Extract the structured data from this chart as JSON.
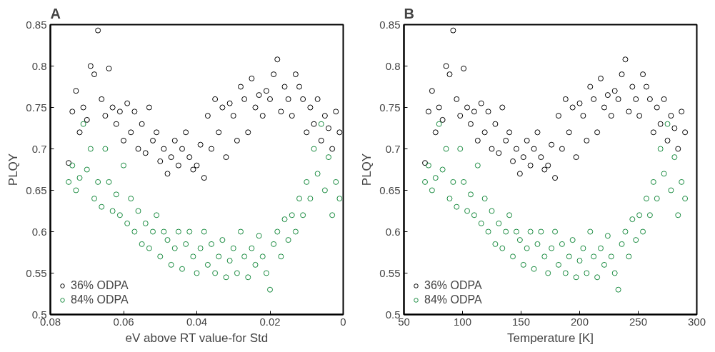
{
  "chart_data": [
    {
      "type": "scatter",
      "title": "A",
      "xlabel": "eV above RT value-for Std",
      "ylabel": "PLQY",
      "xlim": [
        0.08,
        0
      ],
      "xticks": [
        0.08,
        0.06,
        0.04,
        0.02,
        0
      ],
      "ylim": [
        0.5,
        0.85
      ],
      "yticks": [
        0.5,
        0.55,
        0.6,
        0.65,
        0.7,
        0.75,
        0.8,
        0.85
      ],
      "grid": false,
      "legend": "bottom left",
      "marker": "circle",
      "x": [
        0.075,
        0.074,
        0.073,
        0.072,
        0.071,
        0.07,
        0.069,
        0.068,
        0.067,
        0.066,
        0.065,
        0.064,
        0.063,
        0.062,
        0.061,
        0.06,
        0.059,
        0.058,
        0.057,
        0.056,
        0.055,
        0.054,
        0.053,
        0.052,
        0.051,
        0.05,
        0.049,
        0.048,
        0.047,
        0.046,
        0.045,
        0.044,
        0.043,
        0.042,
        0.041,
        0.04,
        0.039,
        0.038,
        0.037,
        0.036,
        0.035,
        0.034,
        0.033,
        0.032,
        0.031,
        0.03,
        0.029,
        0.028,
        0.027,
        0.026,
        0.025,
        0.024,
        0.023,
        0.022,
        0.021,
        0.02,
        0.019,
        0.018,
        0.017,
        0.016,
        0.015,
        0.014,
        0.013,
        0.012,
        0.011,
        0.01,
        0.009,
        0.008,
        0.007,
        0.006,
        0.005,
        0.004,
        0.003,
        0.002,
        0.001
      ],
      "series": [
        {
          "name": "36% ODPA",
          "color": "#000000",
          "values": [
            0.683,
            0.745,
            0.77,
            0.72,
            0.75,
            0.735,
            0.8,
            0.79,
            0.843,
            0.76,
            0.74,
            0.797,
            0.75,
            0.73,
            0.745,
            0.71,
            0.755,
            0.72,
            0.745,
            0.7,
            0.73,
            0.695,
            0.75,
            0.71,
            0.72,
            0.685,
            0.7,
            0.67,
            0.69,
            0.71,
            0.68,
            0.7,
            0.72,
            0.69,
            0.675,
            0.68,
            0.705,
            0.665,
            0.74,
            0.7,
            0.76,
            0.72,
            0.75,
            0.69,
            0.755,
            0.74,
            0.71,
            0.775,
            0.76,
            0.72,
            0.785,
            0.75,
            0.765,
            0.74,
            0.77,
            0.76,
            0.79,
            0.808,
            0.745,
            0.775,
            0.76,
            0.74,
            0.79,
            0.775,
            0.76,
            0.72,
            0.75,
            0.73,
            0.76,
            0.71,
            0.74,
            0.725,
            0.7,
            0.745,
            0.72
          ]
        },
        {
          "name": "84% ODPA",
          "color": "#178a3e",
          "values": [
            0.66,
            0.68,
            0.65,
            0.665,
            0.73,
            0.675,
            0.7,
            0.64,
            0.66,
            0.63,
            0.7,
            0.66,
            0.625,
            0.645,
            0.62,
            0.68,
            0.61,
            0.64,
            0.6,
            0.625,
            0.585,
            0.61,
            0.58,
            0.6,
            0.62,
            0.57,
            0.6,
            0.59,
            0.56,
            0.58,
            0.6,
            0.555,
            0.585,
            0.6,
            0.57,
            0.55,
            0.58,
            0.6,
            0.56,
            0.585,
            0.55,
            0.57,
            0.59,
            0.545,
            0.565,
            0.58,
            0.55,
            0.6,
            0.57,
            0.545,
            0.58,
            0.56,
            0.595,
            0.57,
            0.55,
            0.53,
            0.585,
            0.6,
            0.57,
            0.615,
            0.59,
            0.62,
            0.6,
            0.64,
            0.62,
            0.66,
            0.64,
            0.7,
            0.67,
            0.73,
            0.65,
            0.69,
            0.62,
            0.66,
            0.64
          ]
        }
      ]
    },
    {
      "type": "scatter",
      "title": "B",
      "xlabel": "Temperature [K]",
      "ylabel": "PLQY",
      "xlim": [
        50,
        300
      ],
      "xticks": [
        50,
        100,
        150,
        200,
        250,
        300
      ],
      "ylim": [
        0.5,
        0.85
      ],
      "yticks": [
        0.5,
        0.55,
        0.6,
        0.65,
        0.7,
        0.75,
        0.8,
        0.85
      ],
      "grid": false,
      "legend": "bottom left",
      "marker": "circle",
      "x": [
        68,
        71,
        74,
        77,
        80,
        83,
        86,
        89,
        92,
        95,
        98,
        101,
        104,
        107,
        110,
        113,
        116,
        119,
        122,
        125,
        128,
        131,
        134,
        137,
        140,
        143,
        146,
        149,
        152,
        155,
        158,
        161,
        164,
        167,
        170,
        173,
        176,
        179,
        182,
        185,
        188,
        191,
        194,
        197,
        200,
        203,
        206,
        209,
        212,
        215,
        218,
        221,
        224,
        227,
        230,
        233,
        236,
        239,
        242,
        245,
        248,
        251,
        254,
        257,
        260,
        263,
        266,
        269,
        272,
        275,
        278,
        281,
        284,
        287,
        290
      ],
      "series": [
        {
          "name": "36% ODPA",
          "color": "#000000",
          "values": [
            0.683,
            0.745,
            0.77,
            0.72,
            0.75,
            0.735,
            0.8,
            0.79,
            0.843,
            0.76,
            0.74,
            0.797,
            0.75,
            0.73,
            0.745,
            0.71,
            0.755,
            0.72,
            0.745,
            0.7,
            0.73,
            0.695,
            0.75,
            0.71,
            0.72,
            0.685,
            0.7,
            0.67,
            0.69,
            0.71,
            0.68,
            0.7,
            0.72,
            0.69,
            0.675,
            0.68,
            0.705,
            0.665,
            0.74,
            0.7,
            0.76,
            0.72,
            0.75,
            0.69,
            0.755,
            0.74,
            0.71,
            0.775,
            0.76,
            0.72,
            0.785,
            0.75,
            0.765,
            0.74,
            0.77,
            0.76,
            0.79,
            0.808,
            0.745,
            0.775,
            0.76,
            0.74,
            0.79,
            0.775,
            0.76,
            0.72,
            0.75,
            0.73,
            0.76,
            0.71,
            0.74,
            0.725,
            0.7,
            0.745,
            0.72
          ]
        },
        {
          "name": "84% ODPA",
          "color": "#178a3e",
          "values": [
            0.66,
            0.68,
            0.65,
            0.665,
            0.73,
            0.675,
            0.7,
            0.64,
            0.66,
            0.63,
            0.7,
            0.66,
            0.625,
            0.645,
            0.62,
            0.68,
            0.61,
            0.64,
            0.6,
            0.625,
            0.585,
            0.61,
            0.58,
            0.6,
            0.62,
            0.57,
            0.6,
            0.59,
            0.56,
            0.58,
            0.6,
            0.555,
            0.585,
            0.6,
            0.57,
            0.55,
            0.58,
            0.6,
            0.56,
            0.585,
            0.55,
            0.57,
            0.59,
            0.545,
            0.565,
            0.58,
            0.55,
            0.6,
            0.57,
            0.545,
            0.58,
            0.56,
            0.595,
            0.57,
            0.55,
            0.53,
            0.585,
            0.6,
            0.57,
            0.615,
            0.59,
            0.62,
            0.6,
            0.64,
            0.62,
            0.66,
            0.64,
            0.7,
            0.67,
            0.73,
            0.65,
            0.69,
            0.62,
            0.66,
            0.64
          ]
        }
      ]
    }
  ]
}
